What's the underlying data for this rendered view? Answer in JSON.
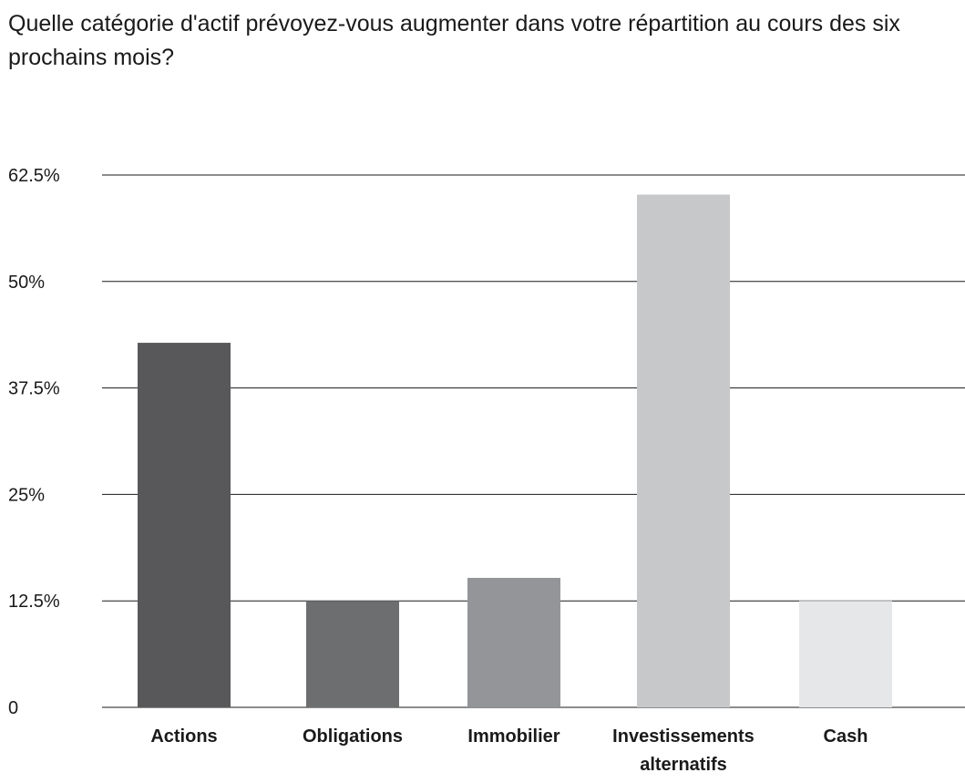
{
  "chart_data": {
    "type": "bar",
    "title": "Quelle catégorie d'actif prévoyez-vous augmenter dans votre répartition au cours des six prochains mois?",
    "xlabel": "",
    "ylabel": "",
    "categories": [
      [
        "Actions"
      ],
      [
        "Obligations"
      ],
      [
        "Immobilier"
      ],
      [
        "Investissements",
        "alternatifs"
      ],
      [
        "Cash"
      ]
    ],
    "values": [
      42.8,
      12.5,
      15.2,
      60.2,
      12.5
    ],
    "colors": [
      "#58585a",
      "#6d6e70",
      "#939598",
      "#c7c8ca",
      "#e6e7e8"
    ],
    "yticks": [
      {
        "value": 0,
        "label": "0"
      },
      {
        "value": 12.5,
        "label": "12.5%"
      },
      {
        "value": 25,
        "label": "25%"
      },
      {
        "value": 37.5,
        "label": "37.5%"
      },
      {
        "value": 50,
        "label": "50%"
      },
      {
        "value": 62.5,
        "label": "62.5%"
      }
    ],
    "ylim": [
      0,
      62.5
    ],
    "grid": true,
    "gridline_color": "#1a1a1a"
  }
}
